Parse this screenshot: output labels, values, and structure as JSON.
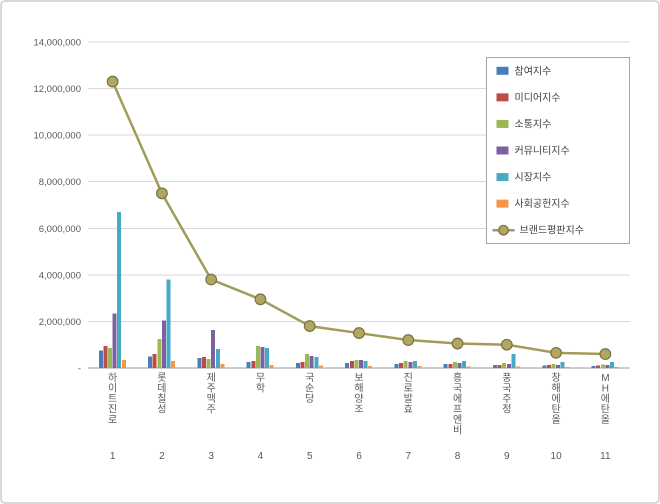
{
  "chart_data": {
    "type": "bar",
    "title": "",
    "categories": [
      "하이트진로",
      "롯데칠성",
      "제주맥주",
      "무학",
      "국순당",
      "보해양조",
      "진로발효",
      "흥국에프엔비",
      "풍국주정",
      "창해에탄올",
      "MH에탄올"
    ],
    "category_numbers": [
      "1",
      "2",
      "3",
      "4",
      "5",
      "6",
      "7",
      "8",
      "9",
      "10",
      "11"
    ],
    "y_ticks": [
      "14,000,000",
      "12,000,000",
      "10,000,000",
      "8,000,000",
      "6,000,000",
      "4,000,000",
      "2,000,000",
      "-"
    ],
    "y_tick_step": 2000000,
    "ylim": [
      0,
      14000000
    ],
    "grid": true,
    "legend_position": "top-right",
    "bar_series": [
      {
        "name": "참여지수",
        "color": "#4A7EBB",
        "values": [
          750000,
          500000,
          430000,
          260000,
          215000,
          215000,
          170000,
          170000,
          130000,
          110000,
          90000
        ]
      },
      {
        "name": "미디어지수",
        "color": "#BE4B48",
        "values": [
          950000,
          600000,
          470000,
          300000,
          260000,
          300000,
          215000,
          170000,
          130000,
          130000,
          110000
        ]
      },
      {
        "name": "소통지수",
        "color": "#98B954",
        "values": [
          850000,
          1250000,
          390000,
          950000,
          600000,
          345000,
          300000,
          260000,
          215000,
          170000,
          150000
        ]
      },
      {
        "name": "커뮤니티지수",
        "color": "#7D60A0",
        "values": [
          2350000,
          2050000,
          1630000,
          900000,
          515000,
          345000,
          260000,
          215000,
          170000,
          130000,
          130000
        ]
      },
      {
        "name": "시장지수",
        "color": "#46AAC5",
        "values": [
          6700000,
          3800000,
          820000,
          860000,
          470000,
          300000,
          300000,
          300000,
          600000,
          260000,
          260000
        ]
      },
      {
        "name": "사회공헌지수",
        "color": "#F79646",
        "values": [
          350000,
          300000,
          170000,
          130000,
          110000,
          90000,
          90000,
          65000,
          65000,
          45000,
          45000
        ]
      }
    ],
    "line_series": {
      "name": "브랜드평판지수",
      "color": "#A29B59",
      "marker_fill": "#B0A861",
      "marker_stroke": "#79713F",
      "values": [
        12300000,
        7500000,
        3800000,
        2950000,
        1800000,
        1500000,
        1200000,
        1050000,
        1000000,
        650000,
        600000
      ]
    },
    "colors": {
      "background": "#ffffff",
      "frame_border": "#cccccc",
      "gridline": "#d9d9d9",
      "axis_line": "#9e9e9e",
      "axis_text": "#595959",
      "legend_border": "#a6a6a6",
      "legend_text": "#404040"
    }
  }
}
